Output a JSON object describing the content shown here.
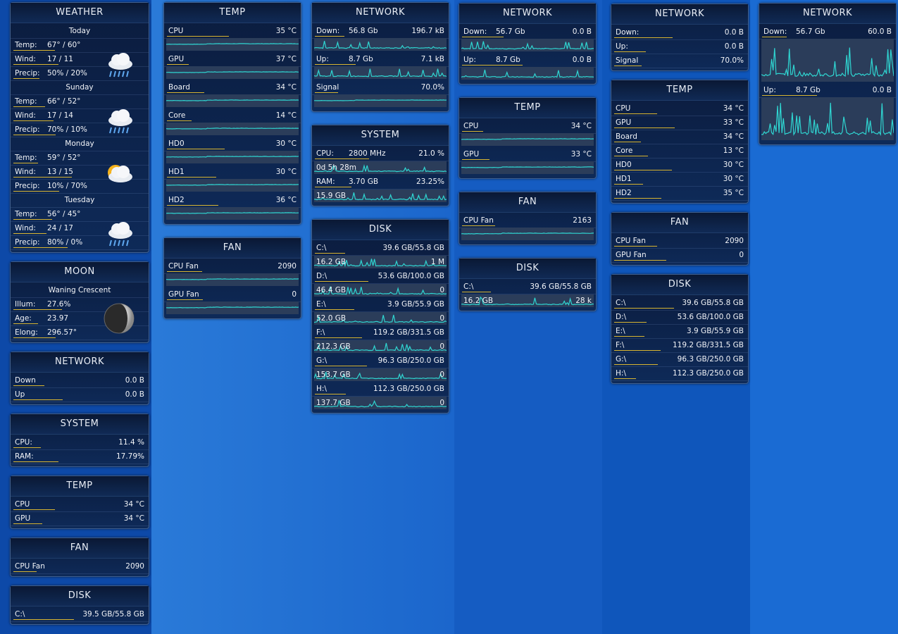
{
  "widgets": [
    {
      "title": "WEATHER",
      "rows": [
        {
          "text": "Today"
        },
        {
          "label": "Temp:",
          "mid": "67° / 60°"
        },
        {
          "label": "Wind:",
          "mid": "17 / 11"
        },
        {
          "label": "Precip:",
          "mid": "50% / 20%"
        },
        {
          "text": "Sunday"
        },
        {
          "label": "Temp:",
          "mid": "66° / 52°"
        },
        {
          "label": "Wind:",
          "mid": "17 / 14"
        },
        {
          "label": "Precip:",
          "mid": "70% / 10%"
        },
        {
          "text": "Monday"
        },
        {
          "label": "Temp:",
          "mid": "59° / 52°"
        },
        {
          "label": "Wind:",
          "mid": "13 / 15"
        },
        {
          "label": "Precip:",
          "mid": "10% / 70%"
        },
        {
          "text": "Tuesday"
        },
        {
          "label": "Temp:",
          "mid": "56° / 45°"
        },
        {
          "label": "Wind:",
          "mid": "24 / 17"
        },
        {
          "label": "Precip:",
          "mid": "80% / 0%"
        }
      ]
    },
    {
      "title": "MOON",
      "rows": [
        {
          "text": "Waning Crescent"
        },
        {
          "label": "Illum:",
          "mid": "27.6%"
        },
        {
          "label": "Age:",
          "mid": "23.97"
        },
        {
          "label": "Elong:",
          "mid": "296.57°"
        }
      ]
    },
    {
      "title": "NETWORK",
      "rows": [
        {
          "label": "Down",
          "value": "0.0 B"
        },
        {
          "label": "Up",
          "value": "0.0 B"
        }
      ]
    },
    {
      "title": "SYSTEM",
      "rows": [
        {
          "label": "CPU:",
          "value": "11.4 %"
        },
        {
          "label": "RAM:",
          "value": "17.79%"
        }
      ]
    },
    {
      "title": "TEMP",
      "rows": [
        {
          "label": "CPU",
          "value": "34 °C"
        },
        {
          "label": "GPU",
          "value": "34 °C"
        }
      ]
    },
    {
      "title": "FAN",
      "rows": [
        {
          "label": "CPU Fan",
          "value": "2090"
        }
      ]
    },
    {
      "title": "DISK",
      "rows": [
        {
          "label": "C:\\",
          "value": "39.5 GB/55.8 GB"
        }
      ]
    },
    {
      "title": "TEMP",
      "rows": [
        {
          "label": "CPU",
          "value": "35 °C"
        },
        {
          "label": "GPU",
          "value": "37 °C"
        },
        {
          "label": "Board",
          "value": "34 °C"
        },
        {
          "label": "Core",
          "value": "14 °C"
        },
        {
          "label": "HD0",
          "value": "30 °C"
        },
        {
          "label": "HD1",
          "value": "30 °C"
        },
        {
          "label": "HD2",
          "value": "36 °C"
        }
      ]
    },
    {
      "title": "FAN",
      "rows": [
        {
          "label": "CPU Fan",
          "value": "2090"
        },
        {
          "label": "GPU Fan",
          "value": "0"
        }
      ]
    },
    {
      "title": "NETWORK",
      "rows": [
        {
          "label": "Down:",
          "mid": "56.8 Gb",
          "value": "196.7 kB"
        },
        {
          "label": "Up:",
          "mid": "8.7 Gb",
          "value": "7.1 kB"
        },
        {
          "label": "Signal",
          "value": "70.0%"
        }
      ]
    },
    {
      "title": "SYSTEM",
      "rows": [
        {
          "label": "CPU:",
          "mid": "2800 MHz",
          "value": "21.0 %"
        },
        {
          "label": "0d 5h 28m"
        },
        {
          "label": "RAM:",
          "mid": "3.70 GB",
          "value": "23.25%"
        },
        {
          "label": "15.9 GB"
        }
      ]
    },
    {
      "title": "DISK",
      "rows": [
        {
          "label": "C:\\",
          "value": "39.6 GB/55.8 GB"
        },
        {
          "label": "16.2 GB",
          "value": "1 M"
        },
        {
          "label": "D:\\",
          "value": "53.6 GB/100.0 GB"
        },
        {
          "label": "46.4 GB",
          "value": "0"
        },
        {
          "label": "E:\\",
          "value": "3.9 GB/55.9 GB"
        },
        {
          "label": "52.0 GB",
          "value": "0"
        },
        {
          "label": "F:\\",
          "value": "119.2 GB/331.5 GB"
        },
        {
          "label": "212.3 GB",
          "value": "0"
        },
        {
          "label": "G:\\",
          "value": "96.3 GB/250.0 GB"
        },
        {
          "label": "153.7 GB",
          "value": "0"
        },
        {
          "label": "H:\\",
          "value": "112.3 GB/250.0 GB"
        },
        {
          "label": "137.7 GB",
          "value": "0"
        }
      ]
    },
    {
      "title": "NETWORK",
      "rows": [
        {
          "label": "Down:",
          "mid": "56.7 Gb",
          "value": "0.0 B"
        },
        {
          "label": "Up:",
          "mid": "8.7 Gb",
          "value": "0.0 B"
        }
      ]
    },
    {
      "title": "TEMP",
      "rows": [
        {
          "label": "CPU",
          "value": "34 °C"
        },
        {
          "label": "GPU",
          "value": "33 °C"
        }
      ]
    },
    {
      "title": "FAN",
      "rows": [
        {
          "label": "CPU Fan",
          "value": "2163"
        }
      ]
    },
    {
      "title": "DISK",
      "rows": [
        {
          "label": "C:\\",
          "value": "39.6 GB/55.8 GB"
        },
        {
          "label": "16.2 GB",
          "value": "28 k"
        }
      ]
    },
    {
      "title": "NETWORK",
      "rows": [
        {
          "label": "Down:",
          "value": "0.0 B"
        },
        {
          "label": "Up:",
          "value": "0.0 B"
        },
        {
          "label": "Signal",
          "value": "70.0%"
        }
      ]
    },
    {
      "title": "TEMP",
      "rows": [
        {
          "label": "CPU",
          "value": "34 °C"
        },
        {
          "label": "GPU",
          "value": "33 °C"
        },
        {
          "label": "Board",
          "value": "34 °C"
        },
        {
          "label": "Core",
          "value": "13 °C"
        },
        {
          "label": "HD0",
          "value": "30 °C"
        },
        {
          "label": "HD1",
          "value": "30 °C"
        },
        {
          "label": "HD2",
          "value": "35 °C"
        }
      ]
    },
    {
      "title": "FAN",
      "rows": [
        {
          "label": "CPU Fan",
          "value": "2090"
        },
        {
          "label": "GPU Fan",
          "value": "0"
        }
      ]
    },
    {
      "title": "DISK",
      "rows": [
        {
          "label": "C:\\",
          "value": "39.6 GB/55.8 GB"
        },
        {
          "label": "D:\\",
          "value": "53.6 GB/100.0 GB"
        },
        {
          "label": "E:\\",
          "value": "3.9 GB/55.9 GB"
        },
        {
          "label": "F:\\",
          "value": "119.2 GB/331.5 GB"
        },
        {
          "label": "G:\\",
          "value": "96.3 GB/250.0 GB"
        },
        {
          "label": "H:\\",
          "value": "112.3 GB/250.0 GB"
        }
      ]
    },
    {
      "title": "NETWORK",
      "rows": [
        {
          "label": "Down:",
          "mid": "56.7 Gb",
          "value": "60.0 B"
        },
        {
          "label": "Up:",
          "mid": "8.7 Gb",
          "value": "0.0 B"
        }
      ]
    }
  ]
}
